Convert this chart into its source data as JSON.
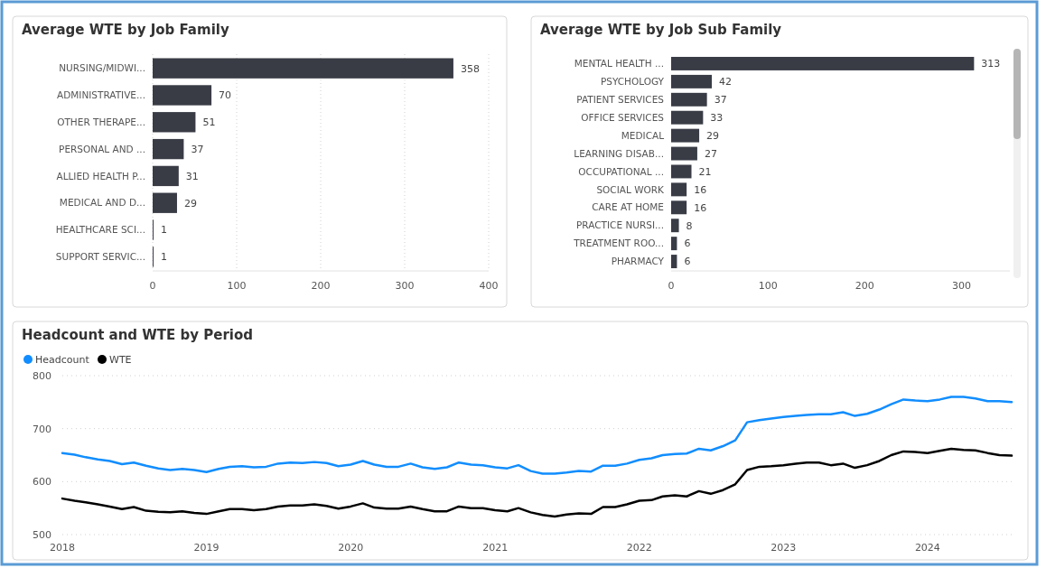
{
  "chart_data": [
    {
      "type": "bar",
      "title": "Average WTE by Job Family",
      "orientation": "horizontal",
      "categories": [
        "NURSING/MIDWI...",
        "ADMINISTRATIVE...",
        "OTHER THERAPE...",
        "PERSONAL AND ...",
        "ALLIED HEALTH P...",
        "MEDICAL AND D...",
        "HEALTHCARE SCI...",
        "SUPPORT SERVIC..."
      ],
      "values": [
        358,
        70,
        51,
        37,
        31,
        29,
        1,
        1
      ],
      "color": "#393c45",
      "xlim": [
        0,
        400
      ],
      "xticks": [
        0,
        100,
        200,
        300,
        400
      ],
      "grid": "x",
      "data_labels": true
    },
    {
      "type": "bar",
      "title": "Average WTE by Job Sub Family",
      "orientation": "horizontal",
      "categories": [
        "MENTAL HEALTH ...",
        "PSYCHOLOGY",
        "PATIENT SERVICES",
        "OFFICE SERVICES",
        "MEDICAL",
        "LEARNING DISAB...",
        "OCCUPATIONAL ...",
        "SOCIAL WORK",
        "CARE AT HOME",
        "PRACTICE NURSI...",
        "TREATMENT ROO...",
        "PHARMACY"
      ],
      "values": [
        313,
        42,
        37,
        33,
        29,
        27,
        21,
        16,
        16,
        8,
        6,
        6
      ],
      "color": "#393c45",
      "xlim": [
        0,
        350
      ],
      "xticks": [
        0,
        100,
        200,
        300
      ],
      "data_labels": true
    },
    {
      "type": "line",
      "title": "Headcount and WTE by Period",
      "legend": "top left",
      "grid": "y",
      "x": [
        "2018-01",
        "2018-02",
        "2018-03",
        "2018-04",
        "2018-05",
        "2018-06",
        "2018-07",
        "2018-08",
        "2018-09",
        "2018-10",
        "2018-11",
        "2018-12",
        "2019-01",
        "2019-02",
        "2019-03",
        "2019-04",
        "2019-05",
        "2019-06",
        "2019-07",
        "2019-08",
        "2019-09",
        "2019-10",
        "2019-11",
        "2019-12",
        "2020-01",
        "2020-02",
        "2020-03",
        "2020-04",
        "2020-05",
        "2020-06",
        "2020-07",
        "2020-08",
        "2020-09",
        "2020-10",
        "2020-11",
        "2020-12",
        "2021-01",
        "2021-02",
        "2021-03",
        "2021-04",
        "2021-05",
        "2021-06",
        "2021-07",
        "2021-08",
        "2021-09",
        "2021-10",
        "2021-11",
        "2021-12",
        "2022-01",
        "2022-02",
        "2022-03",
        "2022-04",
        "2022-05",
        "2022-06",
        "2022-07",
        "2022-08",
        "2022-09",
        "2022-10",
        "2022-11",
        "2022-12",
        "2023-01",
        "2023-02",
        "2023-03",
        "2023-04",
        "2023-05",
        "2023-06",
        "2023-07",
        "2023-08",
        "2023-09",
        "2023-10",
        "2023-11",
        "2023-12",
        "2024-01",
        "2024-02",
        "2024-03",
        "2024-04",
        "2024-05",
        "2024-06",
        "2024-07",
        "2024-08"
      ],
      "series": [
        {
          "name": "Headcount",
          "color": "#118dff",
          "values": [
            654,
            651,
            646,
            642,
            639,
            633,
            636,
            630,
            625,
            622,
            624,
            622,
            618,
            624,
            628,
            629,
            627,
            628,
            634,
            636,
            635,
            637,
            635,
            629,
            632,
            639,
            632,
            628,
            628,
            634,
            627,
            624,
            627,
            636,
            632,
            631,
            627,
            625,
            631,
            620,
            615,
            615,
            617,
            620,
            619,
            630,
            630,
            634,
            641,
            644,
            650,
            652,
            653,
            662,
            659,
            667,
            678,
            712,
            716,
            719,
            722,
            724,
            726,
            727,
            727,
            731,
            724,
            728,
            736,
            746,
            755,
            753,
            752,
            755,
            760,
            760,
            757,
            752,
            752,
            750
          ]
        },
        {
          "name": "WTE",
          "color": "#000000",
          "values": [
            568,
            564,
            561,
            557,
            553,
            548,
            552,
            545,
            543,
            542,
            544,
            541,
            539,
            544,
            548,
            548,
            546,
            548,
            553,
            555,
            555,
            557,
            554,
            549,
            553,
            559,
            551,
            549,
            549,
            553,
            548,
            544,
            544,
            553,
            550,
            550,
            546,
            544,
            550,
            542,
            537,
            534,
            538,
            540,
            539,
            552,
            552,
            557,
            564,
            565,
            572,
            574,
            572,
            582,
            577,
            584,
            595,
            622,
            628,
            629,
            631,
            634,
            636,
            636,
            631,
            634,
            626,
            631,
            639,
            650,
            657,
            656,
            654,
            658,
            662,
            660,
            659,
            654,
            650,
            649
          ]
        }
      ],
      "xlim": [
        "2018-01",
        "2024-08"
      ],
      "xticks": [
        {
          "value": "2018-01",
          "label": "2018"
        },
        {
          "value": "2019-01",
          "label": "2019"
        },
        {
          "value": "2020-01",
          "label": "2020"
        },
        {
          "value": "2021-01",
          "label": "2021"
        },
        {
          "value": "2022-01",
          "label": "2022"
        },
        {
          "value": "2023-01",
          "label": "2023"
        },
        {
          "value": "2024-01",
          "label": "2024"
        }
      ],
      "ylim": [
        500,
        800
      ],
      "yticks": [
        500,
        600,
        700,
        800
      ]
    }
  ]
}
